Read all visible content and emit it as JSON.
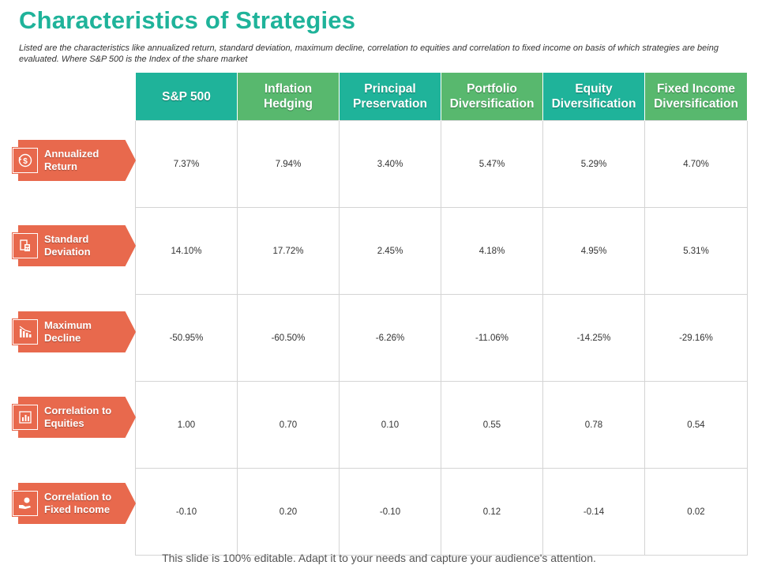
{
  "title": "Characteristics of Strategies",
  "subtitle": "Listed are the characteristics like annualized return, standard deviation, maximum decline, correlation to equities and correlation to fixed income on basis of which strategies are being evaluated. Where S&P 500 is the Index of the share market",
  "columns": [
    {
      "label": "S&P 500",
      "color": "#1fb39a"
    },
    {
      "label": "Inflation Hedging",
      "color": "#58b86e"
    },
    {
      "label": "Principal Preservation",
      "color": "#1fb39a"
    },
    {
      "label": "Portfolio Diversification",
      "color": "#58b86e"
    },
    {
      "label": "Equity Diversification",
      "color": "#1fb39a"
    },
    {
      "label": "Fixed Income Diversification",
      "color": "#58b86e"
    }
  ],
  "rows": [
    {
      "label": "Annualized Return",
      "icon": "dollar-cycle-icon",
      "values": [
        "7.37%",
        "7.94%",
        "3.40%",
        "5.47%",
        "5.29%",
        "4.70%"
      ]
    },
    {
      "label": "Standard Deviation",
      "icon": "calculator-document-icon",
      "values": [
        "14.10%",
        "17.72%",
        "2.45%",
        "4.18%",
        "4.95%",
        "5.31%"
      ]
    },
    {
      "label": "Maximum Decline",
      "icon": "declining-chart-icon",
      "values": [
        "-50.95%",
        "-60.50%",
        "-6.26%",
        "-11.06%",
        "-14.25%",
        "-29.16%"
      ]
    },
    {
      "label": "Correlation to Equities",
      "icon": "bar-chart-icon",
      "values": [
        "1.00",
        "0.70",
        "0.10",
        "0.55",
        "0.78",
        "0.54"
      ]
    },
    {
      "label": "Correlation to Fixed Income",
      "icon": "hand-coin-icon",
      "values": [
        "-0.10",
        "0.20",
        "-0.10",
        "0.12",
        "-0.14",
        "0.02"
      ]
    }
  ],
  "footer": "This slide is 100% editable. Adapt it to your needs and capture your audience's attention.",
  "colors": {
    "teal": "#1fb39a",
    "green": "#58b86e",
    "orange": "#e8694d"
  }
}
